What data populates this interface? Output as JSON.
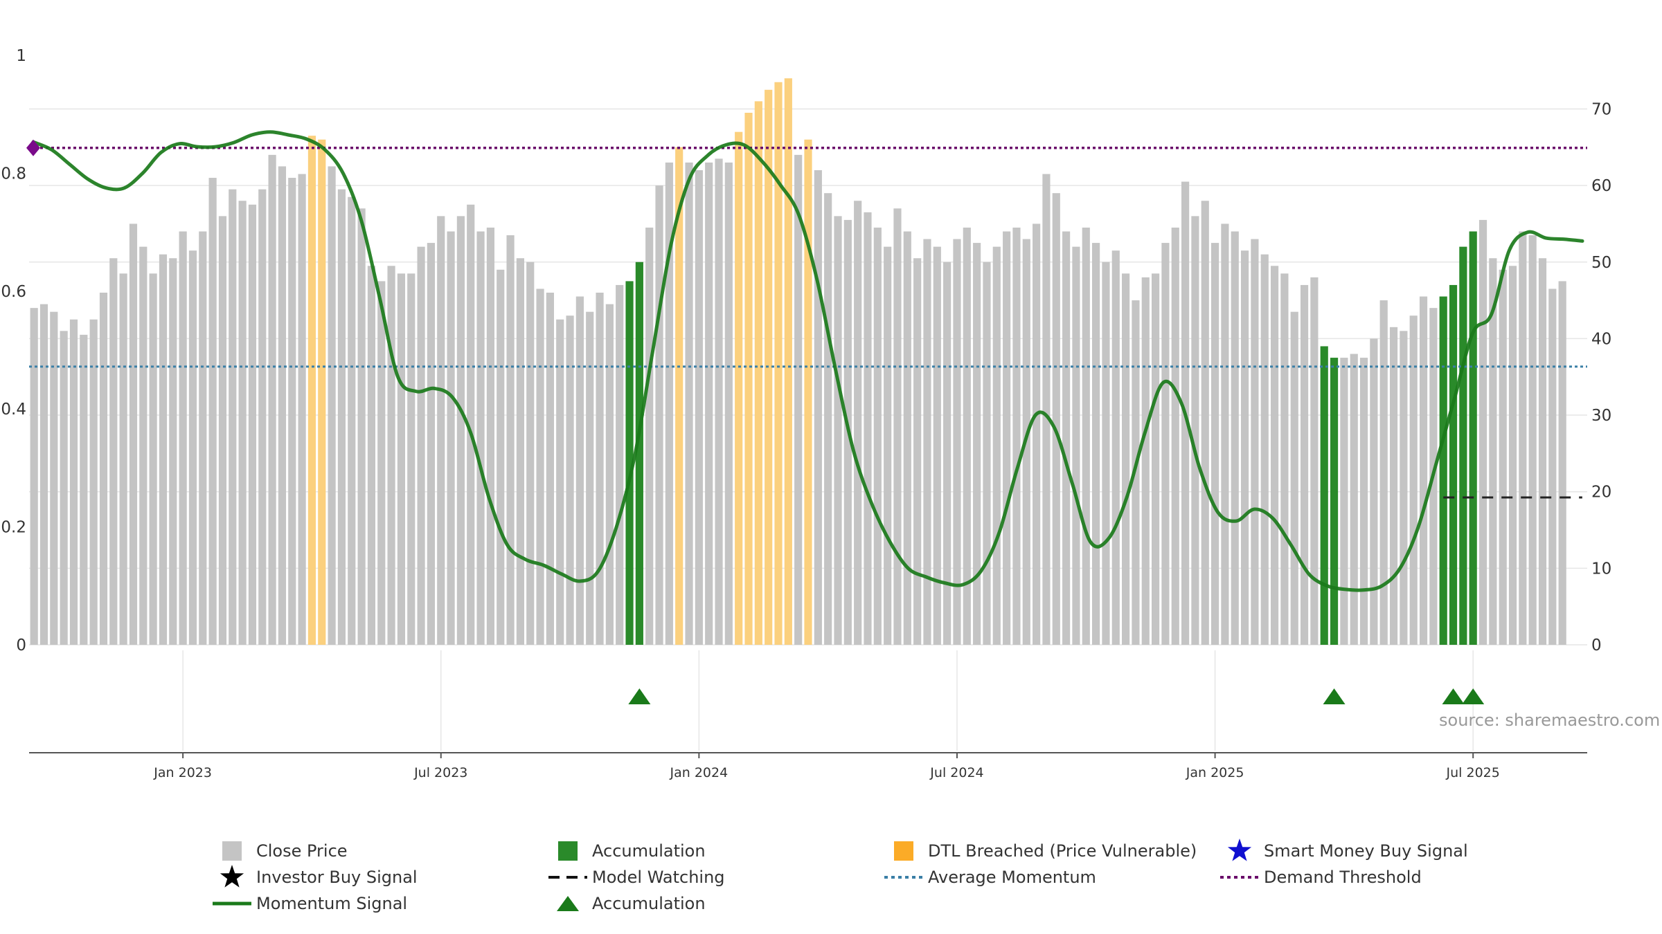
{
  "chart_data": {
    "type": "bar+line",
    "source_note": "source: sharemaestro.com",
    "left_axis": {
      "ticks": [
        "0",
        "0.2",
        "0.4",
        "0.6",
        "0.8",
        "1"
      ],
      "ylim": [
        0,
        1
      ]
    },
    "right_axis": {
      "ticks": [
        "0",
        "10",
        "20",
        "30",
        "40",
        "50",
        "60",
        "70"
      ],
      "ylim": [
        0,
        77
      ]
    },
    "x_ticks": [
      "Jan 2023",
      "Jul 2023",
      "Jan 2024",
      "Jul 2024",
      "Jan 2025",
      "Jul 2025"
    ],
    "x_tick_weeks": [
      15,
      41,
      67,
      93,
      119,
      145
    ],
    "weeks": 157,
    "close_price": [
      44,
      44.5,
      43.5,
      41,
      42.5,
      40.5,
      42.5,
      46,
      50.5,
      48.5,
      55,
      52,
      48.5,
      51,
      50.5,
      54,
      51.5,
      54,
      61,
      56,
      59.5,
      58,
      57.5,
      59.5,
      64,
      62.5,
      61,
      61.5,
      66.5,
      66,
      62.5,
      59.5,
      58.5,
      57,
      49.5,
      47.5,
      49.5,
      48.5,
      48.5,
      52,
      52.5,
      56,
      54,
      56,
      57.5,
      54,
      54.5,
      49,
      53.5,
      50.5,
      50,
      46.5,
      46,
      42.5,
      43,
      45.5,
      43.5,
      46,
      44.5,
      47,
      47.5,
      50,
      54.5,
      60,
      63,
      65,
      63,
      62,
      63,
      63.5,
      63,
      67,
      69.5,
      71,
      72.5,
      73.5,
      74,
      64,
      66,
      62,
      59,
      56,
      55.5,
      58,
      56.5,
      54.5,
      52,
      57,
      54,
      50.5,
      53,
      52,
      50,
      53,
      54.5,
      52.5,
      50,
      52,
      54,
      54.5,
      53,
      55,
      61.5,
      59,
      54,
      52,
      54.5,
      52.5,
      50,
      51.5,
      48.5,
      45,
      48,
      48.5,
      52.5,
      54.5,
      60.5,
      56,
      58,
      52.5,
      55,
      54,
      51.5,
      53,
      51,
      49.5,
      48.5,
      43.5,
      47,
      48,
      39,
      37.5,
      37.5,
      38,
      37.5,
      40,
      45,
      41.5,
      41,
      43,
      45.5,
      44,
      45.5,
      47,
      52,
      54,
      55.5,
      50.5,
      49,
      49.5,
      54,
      53.5,
      50.5,
      46.5,
      47.5
    ],
    "accumulation_weeks": [
      60,
      61,
      130,
      131,
      142,
      143,
      144,
      145
    ],
    "dtl_breached_weeks": [
      28,
      29,
      65,
      71,
      72,
      73,
      74,
      75,
      76,
      78
    ],
    "accumulation_markers": [
      61,
      131,
      143,
      145
    ],
    "momentum_signal": [
      [
        0,
        0.853
      ],
      [
        2,
        0.84
      ],
      [
        4,
        0.815
      ],
      [
        6,
        0.79
      ],
      [
        8,
        0.775
      ],
      [
        10,
        0.775
      ],
      [
        12,
        0.8
      ],
      [
        14,
        0.835
      ],
      [
        16,
        0.85
      ],
      [
        18,
        0.845
      ],
      [
        20,
        0.845
      ],
      [
        22,
        0.852
      ],
      [
        24,
        0.865
      ],
      [
        26,
        0.87
      ],
      [
        28,
        0.865
      ],
      [
        30,
        0.858
      ],
      [
        32,
        0.84
      ],
      [
        34,
        0.8
      ],
      [
        36,
        0.72
      ],
      [
        38,
        0.59
      ],
      [
        40,
        0.455
      ],
      [
        42,
        0.43
      ],
      [
        44,
        0.435
      ],
      [
        46,
        0.42
      ],
      [
        48,
        0.36
      ],
      [
        50,
        0.25
      ],
      [
        52,
        0.17
      ],
      [
        54,
        0.145
      ],
      [
        56,
        0.135
      ],
      [
        58,
        0.12
      ],
      [
        60,
        0.108
      ],
      [
        62,
        0.125
      ],
      [
        64,
        0.2
      ],
      [
        66,
        0.32
      ],
      [
        68,
        0.5
      ],
      [
        70,
        0.68
      ],
      [
        72,
        0.79
      ],
      [
        74,
        0.83
      ],
      [
        76,
        0.848
      ],
      [
        78,
        0.848
      ],
      [
        80,
        0.82
      ],
      [
        82,
        0.78
      ],
      [
        84,
        0.73
      ],
      [
        86,
        0.62
      ],
      [
        88,
        0.47
      ],
      [
        90,
        0.33
      ],
      [
        92,
        0.24
      ],
      [
        94,
        0.175
      ],
      [
        96,
        0.13
      ],
      [
        98,
        0.115
      ],
      [
        100,
        0.105
      ],
      [
        102,
        0.102
      ],
      [
        104,
        0.125
      ],
      [
        106,
        0.19
      ],
      [
        108,
        0.3
      ],
      [
        110,
        0.39
      ],
      [
        112,
        0.37
      ],
      [
        114,
        0.275
      ],
      [
        116,
        0.175
      ],
      [
        118,
        0.18
      ],
      [
        120,
        0.25
      ],
      [
        122,
        0.36
      ],
      [
        124,
        0.445
      ],
      [
        126,
        0.41
      ],
      [
        128,
        0.3
      ],
      [
        130,
        0.225
      ],
      [
        132,
        0.21
      ],
      [
        134,
        0.23
      ],
      [
        136,
        0.215
      ],
      [
        138,
        0.17
      ],
      [
        140,
        0.12
      ],
      [
        142,
        0.1
      ],
      [
        144,
        0.094
      ],
      [
        146,
        0.093
      ],
      [
        148,
        0.1
      ],
      [
        150,
        0.13
      ],
      [
        152,
        0.2
      ],
      [
        154,
        0.31
      ],
      [
        156,
        0.42
      ],
      [
        158,
        0.53
      ],
      [
        160,
        0.56
      ],
      [
        162,
        0.67
      ],
      [
        164,
        0.7
      ],
      [
        166,
        0.69
      ],
      [
        168,
        0.688
      ],
      [
        170,
        0.685
      ]
    ],
    "momentum_scale": "rescaled to week index 0-156",
    "average_momentum": 0.472,
    "demand_threshold": 0.843,
    "model_watching": {
      "from_week": 142,
      "to_week": 156,
      "value": 0.25
    },
    "demand_marker_week": 0,
    "legend": [
      "Close Price",
      "Accumulation",
      "DTL Breached (Price Vulnerable)",
      "Smart Money Buy Signal",
      "Investor Buy Signal",
      "Model Watching",
      "Average Momentum",
      "Demand Threshold",
      "Momentum Signal",
      "Accumulation"
    ],
    "colors": {
      "close_price": "#c4c4c4",
      "accumulation": "#2a8a2a",
      "dtl_breached": "#fbd07e",
      "momentum": "#1a7a1a",
      "average_momentum": "#3a7fa6",
      "demand_threshold": "#6a0a6a",
      "smart_money": "#1010d0",
      "investor": "#000000",
      "model_watching": "#222222",
      "grid": "#e6e6e6"
    }
  }
}
